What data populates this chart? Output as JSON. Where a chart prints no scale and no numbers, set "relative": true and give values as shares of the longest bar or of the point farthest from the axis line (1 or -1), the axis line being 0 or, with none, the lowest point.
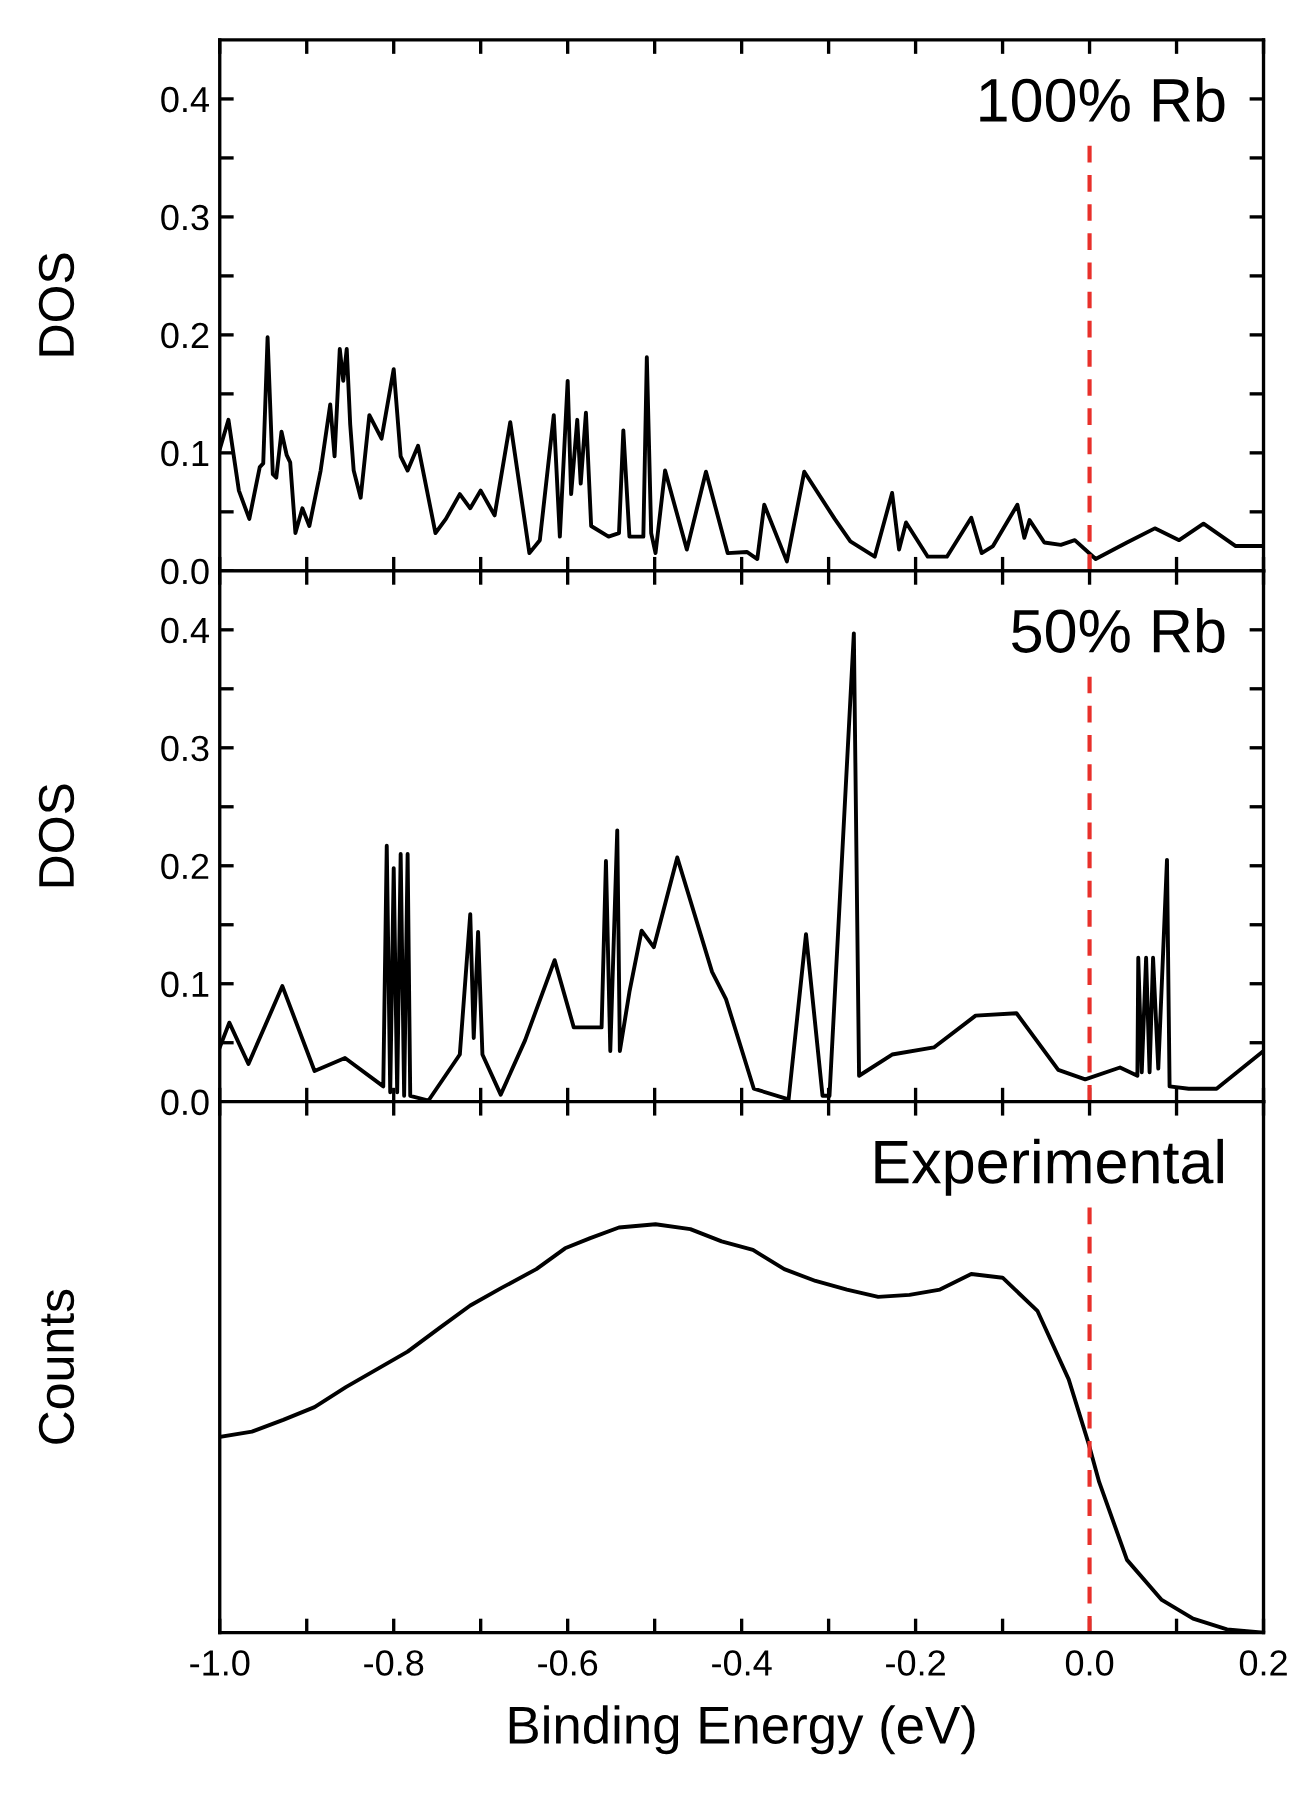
{
  "chart_data": [
    {
      "type": "line",
      "ylabel": "DOS",
      "annotations": [
        "100% Rb"
      ],
      "xlim": [
        -1.0,
        0.2
      ],
      "ylim": [
        0,
        0.45
      ],
      "tick_labels": "y",
      "grid": false,
      "legend": false,
      "xticks": [
        {
          "value": -1.0,
          "label": null
        },
        {
          "value": -0.9,
          "label": null
        },
        {
          "value": -0.8,
          "label": null
        },
        {
          "value": -0.7,
          "label": null
        },
        {
          "value": -0.6,
          "label": null
        },
        {
          "value": -0.5,
          "label": null
        },
        {
          "value": -0.4,
          "label": null
        },
        {
          "value": -0.3,
          "label": null
        },
        {
          "value": -0.2,
          "label": null
        },
        {
          "value": -0.1,
          "label": null
        },
        {
          "value": 0.0,
          "label": null
        },
        {
          "value": 0.1,
          "label": null
        },
        {
          "value": 0.2,
          "label": null
        }
      ],
      "yticks": [
        {
          "value": 0.0,
          "label": "0.0"
        },
        {
          "value": 0.05,
          "label": null
        },
        0.1,
        {
          "value": 0.15,
          "label": null
        },
        0.2,
        {
          "value": 0.25,
          "label": null
        },
        0.3,
        {
          "value": 0.35,
          "label": null
        },
        0.4
      ],
      "ref_lines": [
        {
          "axis": "x",
          "value": 0.0,
          "color": "#e8302a",
          "line_style": "dashed"
        }
      ],
      "series": [
        {
          "color": "#000000",
          "x": [
            -1.0,
            -0.99,
            -0.978,
            -0.966,
            -0.954,
            -0.95,
            -0.945,
            -0.939,
            -0.935,
            -0.929,
            -0.923,
            -0.919,
            -0.913,
            -0.905,
            -0.897,
            -0.884,
            -0.873,
            -0.868,
            -0.862,
            -0.858,
            -0.854,
            -0.85,
            -0.846,
            -0.838,
            -0.828,
            -0.814,
            -0.8,
            -0.792,
            -0.784,
            -0.772,
            -0.752,
            -0.74,
            -0.724,
            -0.712,
            -0.7,
            -0.684,
            -0.666,
            -0.644,
            -0.632,
            -0.616,
            -0.609,
            -0.6,
            -0.596,
            -0.589,
            -0.585,
            -0.579,
            -0.573,
            -0.553,
            -0.541,
            -0.536,
            -0.529,
            -0.513,
            -0.509,
            -0.504,
            -0.499,
            -0.488,
            -0.463,
            -0.441,
            -0.416,
            -0.394,
            -0.382,
            -0.374,
            -0.348,
            -0.328,
            -0.293,
            -0.275,
            -0.247,
            -0.227,
            -0.219,
            -0.211,
            -0.186,
            -0.164,
            -0.136,
            -0.124,
            -0.111,
            -0.083,
            -0.075,
            -0.069,
            -0.052,
            -0.033,
            -0.017,
            0.007,
            0.043,
            0.075,
            0.103,
            0.131,
            0.168,
            0.2
          ],
          "values": [
            0.103,
            0.128,
            0.068,
            0.044,
            0.088,
            0.091,
            0.198,
            0.082,
            0.079,
            0.118,
            0.098,
            0.092,
            0.032,
            0.053,
            0.038,
            0.085,
            0.141,
            0.097,
            0.188,
            0.161,
            0.188,
            0.124,
            0.085,
            0.062,
            0.132,
            0.112,
            0.171,
            0.097,
            0.085,
            0.106,
            0.032,
            0.044,
            0.065,
            0.053,
            0.068,
            0.047,
            0.126,
            0.015,
            0.026,
            0.132,
            0.029,
            0.161,
            0.065,
            0.128,
            0.074,
            0.134,
            0.038,
            0.029,
            0.032,
            0.119,
            0.029,
            0.029,
            0.181,
            0.032,
            0.015,
            0.085,
            0.018,
            0.084,
            0.015,
            0.016,
            0.01,
            0.056,
            0.008,
            0.084,
            0.044,
            0.025,
            0.012,
            0.066,
            0.018,
            0.041,
            0.012,
            0.012,
            0.045,
            0.015,
            0.021,
            0.056,
            0.028,
            0.043,
            0.024,
            0.022,
            0.026,
            0.01,
            0.024,
            0.036,
            0.026,
            0.04,
            0.021,
            0.021
          ]
        }
      ]
    },
    {
      "type": "line",
      "ylabel": "DOS",
      "annotations": [
        "50% Rb"
      ],
      "xlim": [
        -1.0,
        0.2
      ],
      "ylim": [
        0,
        0.45
      ],
      "tick_labels": "y",
      "grid": false,
      "legend": false,
      "xticks": [
        {
          "value": -1.0,
          "label": null
        },
        {
          "value": -0.9,
          "label": null
        },
        {
          "value": -0.8,
          "label": null
        },
        {
          "value": -0.7,
          "label": null
        },
        {
          "value": -0.6,
          "label": null
        },
        {
          "value": -0.5,
          "label": null
        },
        {
          "value": -0.4,
          "label": null
        },
        {
          "value": -0.3,
          "label": null
        },
        {
          "value": -0.2,
          "label": null
        },
        {
          "value": -0.1,
          "label": null
        },
        {
          "value": 0.0,
          "label": null
        },
        {
          "value": 0.1,
          "label": null
        },
        {
          "value": 0.2,
          "label": null
        }
      ],
      "yticks": [
        {
          "value": 0.0,
          "label": "0.0"
        },
        {
          "value": 0.05,
          "label": null
        },
        0.1,
        {
          "value": 0.15,
          "label": null
        },
        0.2,
        {
          "value": 0.25,
          "label": null
        },
        0.3,
        {
          "value": 0.35,
          "label": null
        },
        0.4
      ],
      "ref_lines": [
        {
          "axis": "x",
          "value": 0.0,
          "color": "#e8302a",
          "line_style": "dashed"
        }
      ],
      "series": [
        {
          "color": "#000000",
          "x": [
            -1.0,
            -0.989,
            -0.967,
            -0.928,
            -0.891,
            -0.856,
            -0.812,
            -0.808,
            -0.804,
            -0.8,
            -0.796,
            -0.792,
            -0.788,
            -0.784,
            -0.781,
            -0.76,
            -0.724,
            -0.712,
            -0.708,
            -0.703,
            -0.698,
            -0.677,
            -0.649,
            -0.615,
            -0.593,
            -0.561,
            -0.556,
            -0.551,
            -0.543,
            -0.54,
            -0.529,
            -0.515,
            -0.501,
            -0.474,
            -0.434,
            -0.418,
            -0.386,
            -0.346,
            -0.326,
            -0.307,
            -0.299,
            -0.271,
            -0.265,
            -0.227,
            -0.179,
            -0.131,
            -0.084,
            -0.036,
            -0.005,
            0.035,
            0.055,
            0.056,
            0.06,
            0.065,
            0.069,
            0.073,
            0.079,
            0.089,
            0.092,
            0.114,
            0.146,
            0.2
          ],
          "values": [
            0.046,
            0.067,
            0.032,
            0.098,
            0.026,
            0.037,
            0.013,
            0.217,
            0.008,
            0.198,
            0.008,
            0.21,
            0.005,
            0.21,
            0.005,
            0.001,
            0.04,
            0.159,
            0.054,
            0.144,
            0.04,
            0.006,
            0.052,
            0.12,
            0.063,
            0.063,
            0.204,
            0.043,
            0.23,
            0.043,
            0.093,
            0.145,
            0.131,
            0.207,
            0.11,
            0.087,
            0.011,
            0.002,
            0.142,
            0.005,
            0.005,
            0.397,
            0.022,
            0.04,
            0.046,
            0.073,
            0.075,
            0.027,
            0.019,
            0.029,
            0.022,
            0.122,
            0.025,
            0.122,
            0.025,
            0.122,
            0.028,
            0.205,
            0.013,
            0.011,
            0.011,
            0.043
          ]
        }
      ]
    },
    {
      "type": "line",
      "ylabel": "Counts",
      "xlabel": "Binding Energy (eV)",
      "annotations": [
        "Experimental"
      ],
      "relative": true,
      "xlim": [
        -1.0,
        0.2
      ],
      "tick_labels": "x",
      "grid": false,
      "legend": false,
      "xticks": [
        {
          "value": -1.0,
          "label": "-1.0"
        },
        {
          "value": -0.9,
          "label": null
        },
        {
          "value": -0.8,
          "label": "-0.8"
        },
        {
          "value": -0.7,
          "label": null
        },
        {
          "value": -0.6,
          "label": "-0.6"
        },
        {
          "value": -0.5,
          "label": null
        },
        {
          "value": -0.4,
          "label": "-0.4"
        },
        {
          "value": -0.3,
          "label": null
        },
        {
          "value": -0.2,
          "label": "-0.2"
        },
        {
          "value": -0.1,
          "label": null
        },
        {
          "value": 0.0,
          "label": "0.0"
        },
        {
          "value": 0.1,
          "label": null
        },
        {
          "value": 0.2,
          "label": "0.2"
        }
      ],
      "ref_lines": [
        {
          "axis": "x",
          "value": 0.0,
          "color": "#e8302a",
          "line_style": "dashed"
        }
      ],
      "series": [
        {
          "color": "#000000",
          "x": [
            -1.0,
            -0.963,
            -0.927,
            -0.891,
            -0.855,
            -0.819,
            -0.784,
            -0.748,
            -0.712,
            -0.676,
            -0.636,
            -0.603,
            -0.574,
            -0.541,
            -0.499,
            -0.459,
            -0.423,
            -0.387,
            -0.351,
            -0.315,
            -0.279,
            -0.243,
            -0.207,
            -0.172,
            -0.136,
            -0.1,
            -0.06,
            -0.024,
            -0.001,
            0.011,
            0.043,
            0.083,
            0.119,
            0.158,
            0.2
          ],
          "values": [
            0.479,
            0.492,
            0.521,
            0.552,
            0.601,
            0.645,
            0.688,
            0.745,
            0.801,
            0.844,
            0.89,
            0.941,
            0.966,
            0.992,
            1.0,
            0.988,
            0.958,
            0.937,
            0.89,
            0.861,
            0.84,
            0.822,
            0.827,
            0.84,
            0.878,
            0.869,
            0.788,
            0.62,
            0.462,
            0.369,
            0.178,
            0.08,
            0.034,
            0.008,
            0.0
          ]
        }
      ]
    }
  ]
}
